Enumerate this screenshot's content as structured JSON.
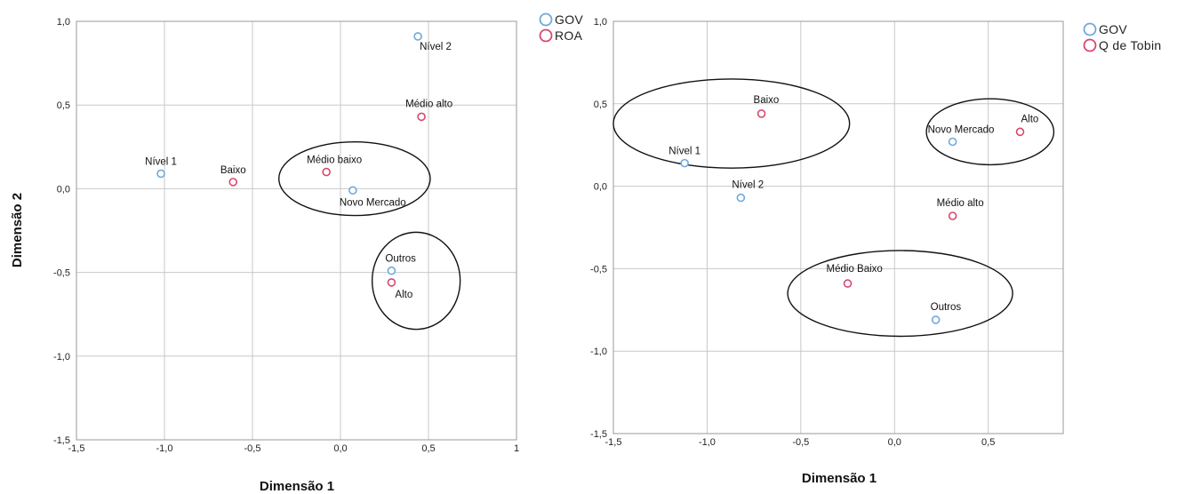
{
  "chart_data": [
    {
      "type": "scatter",
      "title": "",
      "xlabel": "Dimensão 1",
      "ylabel": "Dimensão 2",
      "xlim": [
        -1.5,
        1.0
      ],
      "ylim": [
        -1.5,
        1.0
      ],
      "x_ticks": [
        "-1,5",
        "-1,0",
        "-0,5",
        "0,0",
        "0,5",
        "1"
      ],
      "y_ticks": [
        "-1,5",
        "-1,0",
        "-0,5",
        "0,0",
        "0,5",
        "1,0"
      ],
      "grid": true,
      "legend_position": "top-right",
      "series": [
        {
          "name": "GOV",
          "color": "#6fa8dc",
          "points": [
            {
              "label": "Nível 1",
              "x": -1.02,
              "y": 0.09
            },
            {
              "label": "Nível 2",
              "x": 0.44,
              "y": 0.91
            },
            {
              "label": "Novo Mercado",
              "x": 0.07,
              "y": -0.01
            },
            {
              "label": "Outros",
              "x": 0.29,
              "y": -0.49
            }
          ]
        },
        {
          "name": "ROA",
          "color": "#d9476e",
          "points": [
            {
              "label": "Baixo",
              "x": -0.61,
              "y": 0.04
            },
            {
              "label": "Médio baixo",
              "x": -0.08,
              "y": 0.1
            },
            {
              "label": "Médio alto",
              "x": 0.46,
              "y": 0.43
            },
            {
              "label": "Alto",
              "x": 0.29,
              "y": -0.56
            }
          ]
        }
      ],
      "ellipses": [
        {
          "cx": 0.08,
          "cy": 0.06,
          "rx": 0.43,
          "ry": 0.22
        },
        {
          "cx": 0.43,
          "cy": -0.55,
          "rx": 0.25,
          "ry": 0.29
        }
      ]
    },
    {
      "type": "scatter",
      "title": "",
      "xlabel": "Dimensão 1",
      "ylabel": "",
      "xlim": [
        -1.5,
        0.9
      ],
      "ylim": [
        -1.5,
        1.0
      ],
      "x_ticks": [
        "-1,5",
        "-1,0",
        "-0,5",
        "0,0",
        "0,5"
      ],
      "y_ticks": [
        "-1,5",
        "-1,0",
        "-0,5",
        "0,0",
        "0,5",
        "1,0"
      ],
      "grid": true,
      "legend_position": "top-right",
      "series": [
        {
          "name": "GOV",
          "color": "#6fa8dc",
          "points": [
            {
              "label": "Nível 1",
              "x": -1.12,
              "y": 0.14
            },
            {
              "label": "Nível 2",
              "x": -0.82,
              "y": -0.07
            },
            {
              "label": "Novo Mercado",
              "x": 0.31,
              "y": 0.27
            },
            {
              "label": "Outros",
              "x": 0.22,
              "y": -0.81
            }
          ]
        },
        {
          "name": "Q de Tobin",
          "color": "#d9476e",
          "points": [
            {
              "label": "Baixo",
              "x": -0.71,
              "y": 0.44
            },
            {
              "label": "Alto",
              "x": 0.67,
              "y": 0.33
            },
            {
              "label": "Médio alto",
              "x": 0.31,
              "y": -0.18
            },
            {
              "label": "Médio Baixo",
              "x": -0.25,
              "y": -0.59
            }
          ]
        }
      ],
      "ellipses": [
        {
          "cx": -0.87,
          "cy": 0.38,
          "rx": 0.63,
          "ry": 0.27
        },
        {
          "cx": 0.51,
          "cy": 0.33,
          "rx": 0.34,
          "ry": 0.2
        },
        {
          "cx": 0.03,
          "cy": -0.65,
          "rx": 0.6,
          "ry": 0.26
        }
      ]
    }
  ]
}
